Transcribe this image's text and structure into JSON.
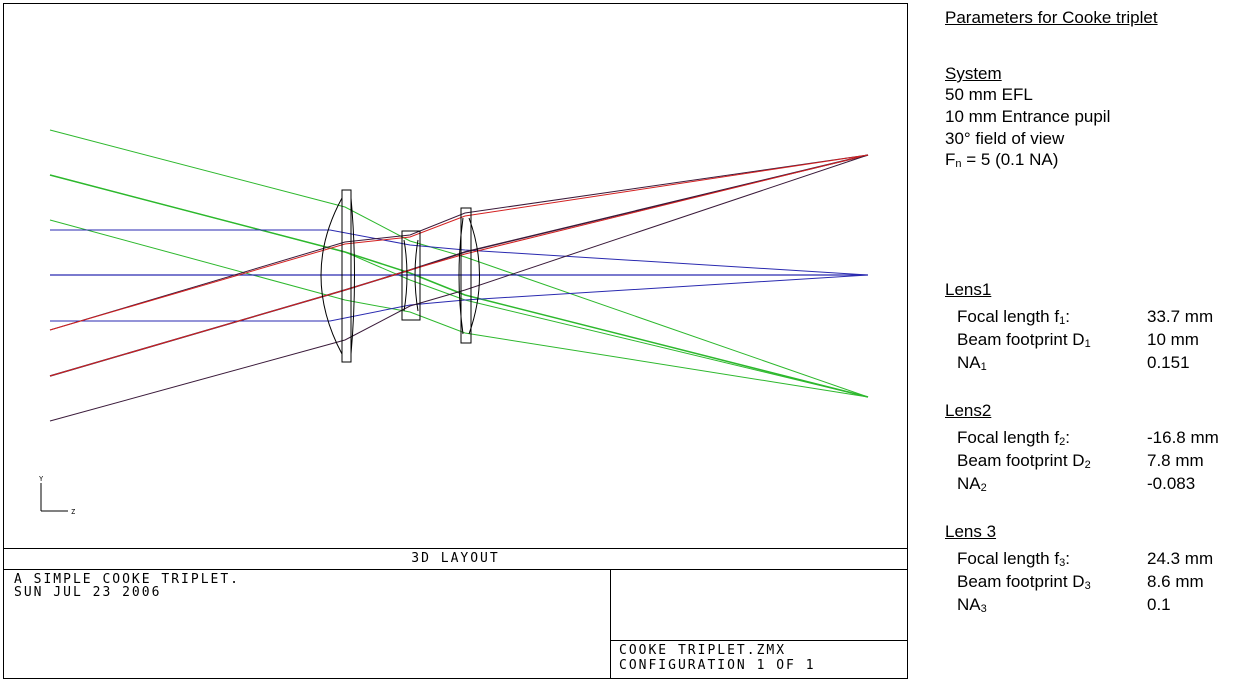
{
  "layout": {
    "title": "3D LAYOUT",
    "description_line1": "A SIMPLE COOKE TRIPLET.",
    "description_line2": "SUN JUL 23 2006",
    "file_name": "COOKE TRIPLET.ZMX",
    "configuration": "CONFIGURATION 1 OF 1",
    "axis_y": "Y",
    "axis_z": "Z"
  },
  "colors": {
    "field_green": "#2db82d",
    "field_blue": "#2a2ab0",
    "field_red": "#d42020",
    "field_dark": "#3a1a3a",
    "lens_outline": "#000000"
  },
  "params": {
    "heading": "Parameters for Cooke triplet",
    "system": {
      "heading": "System",
      "efl": "50 mm EFL",
      "pupil": "10 mm Entrance pupil",
      "fov": "30° field of view",
      "fn_prefix": "F",
      "fn_sub": "n",
      "fn_rest": " = 5 (0.1 NA)"
    },
    "lenses": [
      {
        "heading": "Lens1",
        "focal_label": "Focal length f",
        "focal_sub": "1",
        "focal_value": "33.7 mm",
        "beam_label": "Beam footprint D",
        "beam_sub": "1",
        "beam_value": "10 mm",
        "na_label": "NA",
        "na_sub": "1",
        "na_value": "0.151"
      },
      {
        "heading": "Lens2",
        "focal_label": "Focal length f",
        "focal_sub": "2",
        "focal_value": "-16.8 mm",
        "beam_label": "Beam footprint D",
        "beam_sub": "2",
        "beam_value": "7.8 mm",
        "na_label": "NA",
        "na_sub": "2",
        "na_value": "-0.083"
      },
      {
        "heading": "Lens 3",
        "focal_label": "Focal length f",
        "focal_sub": "3",
        "focal_value": "24.3 mm",
        "beam_label": "Beam footprint D",
        "beam_sub": "3",
        "beam_value": "8.6 mm",
        "na_label": "NA",
        "na_sub": "3",
        "na_value": "0.1"
      }
    ]
  }
}
